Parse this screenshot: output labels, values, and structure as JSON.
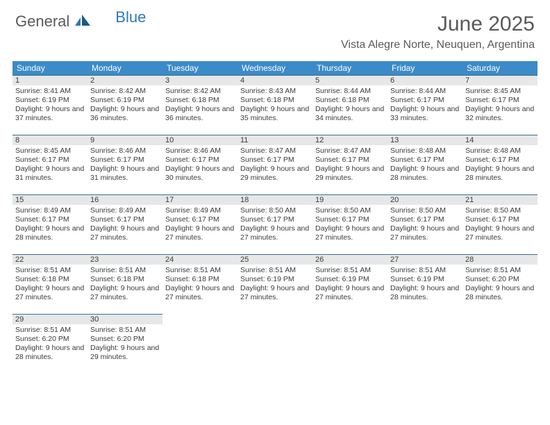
{
  "logo": {
    "text1": "General",
    "text2": "Blue"
  },
  "colors": {
    "header_bg": "#3b8bc9",
    "daynum_bg": "#e6e7e8",
    "day_border": "#3b6e8f",
    "text_gray": "#58595b",
    "logo_blue": "#2a7ab9"
  },
  "title": {
    "month": "June 2025",
    "location": "Vista Alegre Norte, Neuquen, Argentina"
  },
  "weekdays": [
    "Sunday",
    "Monday",
    "Tuesday",
    "Wednesday",
    "Thursday",
    "Friday",
    "Saturday"
  ],
  "weeks": [
    [
      {
        "n": "1",
        "sr": "Sunrise: 8:41 AM",
        "ss": "Sunset: 6:19 PM",
        "dl": "Daylight: 9 hours and 37 minutes."
      },
      {
        "n": "2",
        "sr": "Sunrise: 8:42 AM",
        "ss": "Sunset: 6:19 PM",
        "dl": "Daylight: 9 hours and 36 minutes."
      },
      {
        "n": "3",
        "sr": "Sunrise: 8:42 AM",
        "ss": "Sunset: 6:18 PM",
        "dl": "Daylight: 9 hours and 36 minutes."
      },
      {
        "n": "4",
        "sr": "Sunrise: 8:43 AM",
        "ss": "Sunset: 6:18 PM",
        "dl": "Daylight: 9 hours and 35 minutes."
      },
      {
        "n": "5",
        "sr": "Sunrise: 8:44 AM",
        "ss": "Sunset: 6:18 PM",
        "dl": "Daylight: 9 hours and 34 minutes."
      },
      {
        "n": "6",
        "sr": "Sunrise: 8:44 AM",
        "ss": "Sunset: 6:17 PM",
        "dl": "Daylight: 9 hours and 33 minutes."
      },
      {
        "n": "7",
        "sr": "Sunrise: 8:45 AM",
        "ss": "Sunset: 6:17 PM",
        "dl": "Daylight: 9 hours and 32 minutes."
      }
    ],
    [
      {
        "n": "8",
        "sr": "Sunrise: 8:45 AM",
        "ss": "Sunset: 6:17 PM",
        "dl": "Daylight: 9 hours and 31 minutes."
      },
      {
        "n": "9",
        "sr": "Sunrise: 8:46 AM",
        "ss": "Sunset: 6:17 PM",
        "dl": "Daylight: 9 hours and 31 minutes."
      },
      {
        "n": "10",
        "sr": "Sunrise: 8:46 AM",
        "ss": "Sunset: 6:17 PM",
        "dl": "Daylight: 9 hours and 30 minutes."
      },
      {
        "n": "11",
        "sr": "Sunrise: 8:47 AM",
        "ss": "Sunset: 6:17 PM",
        "dl": "Daylight: 9 hours and 29 minutes."
      },
      {
        "n": "12",
        "sr": "Sunrise: 8:47 AM",
        "ss": "Sunset: 6:17 PM",
        "dl": "Daylight: 9 hours and 29 minutes."
      },
      {
        "n": "13",
        "sr": "Sunrise: 8:48 AM",
        "ss": "Sunset: 6:17 PM",
        "dl": "Daylight: 9 hours and 28 minutes."
      },
      {
        "n": "14",
        "sr": "Sunrise: 8:48 AM",
        "ss": "Sunset: 6:17 PM",
        "dl": "Daylight: 9 hours and 28 minutes."
      }
    ],
    [
      {
        "n": "15",
        "sr": "Sunrise: 8:49 AM",
        "ss": "Sunset: 6:17 PM",
        "dl": "Daylight: 9 hours and 28 minutes."
      },
      {
        "n": "16",
        "sr": "Sunrise: 8:49 AM",
        "ss": "Sunset: 6:17 PM",
        "dl": "Daylight: 9 hours and 27 minutes."
      },
      {
        "n": "17",
        "sr": "Sunrise: 8:49 AM",
        "ss": "Sunset: 6:17 PM",
        "dl": "Daylight: 9 hours and 27 minutes."
      },
      {
        "n": "18",
        "sr": "Sunrise: 8:50 AM",
        "ss": "Sunset: 6:17 PM",
        "dl": "Daylight: 9 hours and 27 minutes."
      },
      {
        "n": "19",
        "sr": "Sunrise: 8:50 AM",
        "ss": "Sunset: 6:17 PM",
        "dl": "Daylight: 9 hours and 27 minutes."
      },
      {
        "n": "20",
        "sr": "Sunrise: 8:50 AM",
        "ss": "Sunset: 6:17 PM",
        "dl": "Daylight: 9 hours and 27 minutes."
      },
      {
        "n": "21",
        "sr": "Sunrise: 8:50 AM",
        "ss": "Sunset: 6:17 PM",
        "dl": "Daylight: 9 hours and 27 minutes."
      }
    ],
    [
      {
        "n": "22",
        "sr": "Sunrise: 8:51 AM",
        "ss": "Sunset: 6:18 PM",
        "dl": "Daylight: 9 hours and 27 minutes."
      },
      {
        "n": "23",
        "sr": "Sunrise: 8:51 AM",
        "ss": "Sunset: 6:18 PM",
        "dl": "Daylight: 9 hours and 27 minutes."
      },
      {
        "n": "24",
        "sr": "Sunrise: 8:51 AM",
        "ss": "Sunset: 6:18 PM",
        "dl": "Daylight: 9 hours and 27 minutes."
      },
      {
        "n": "25",
        "sr": "Sunrise: 8:51 AM",
        "ss": "Sunset: 6:19 PM",
        "dl": "Daylight: 9 hours and 27 minutes."
      },
      {
        "n": "26",
        "sr": "Sunrise: 8:51 AM",
        "ss": "Sunset: 6:19 PM",
        "dl": "Daylight: 9 hours and 27 minutes."
      },
      {
        "n": "27",
        "sr": "Sunrise: 8:51 AM",
        "ss": "Sunset: 6:19 PM",
        "dl": "Daylight: 9 hours and 28 minutes."
      },
      {
        "n": "28",
        "sr": "Sunrise: 8:51 AM",
        "ss": "Sunset: 6:20 PM",
        "dl": "Daylight: 9 hours and 28 minutes."
      }
    ],
    [
      {
        "n": "29",
        "sr": "Sunrise: 8:51 AM",
        "ss": "Sunset: 6:20 PM",
        "dl": "Daylight: 9 hours and 28 minutes."
      },
      {
        "n": "30",
        "sr": "Sunrise: 8:51 AM",
        "ss": "Sunset: 6:20 PM",
        "dl": "Daylight: 9 hours and 29 minutes."
      },
      null,
      null,
      null,
      null,
      null
    ]
  ]
}
